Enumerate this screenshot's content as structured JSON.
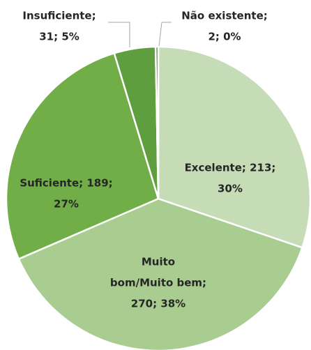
{
  "chart_data": {
    "type": "pie",
    "categories": [
      "Excelente",
      "Muito bom/Muito bem",
      "Suficiente",
      "Insuficiente",
      "Não existente"
    ],
    "values": [
      213,
      270,
      189,
      31,
      2
    ],
    "value_labels": [
      [
        "Excelente; 213;",
        "30%"
      ],
      [
        "Muito",
        "bom/Muito bem;",
        "270; 38%"
      ],
      [
        "Suficiente; 189;",
        "27%"
      ],
      [
        "Insuficiente;",
        "31; 5%"
      ],
      [
        "Não existente;",
        "2; 0%"
      ]
    ],
    "colors": [
      "#c6dcb6",
      "#a9cd90",
      "#71ae48",
      "#5f9e3f",
      "#4e8a30"
    ]
  }
}
